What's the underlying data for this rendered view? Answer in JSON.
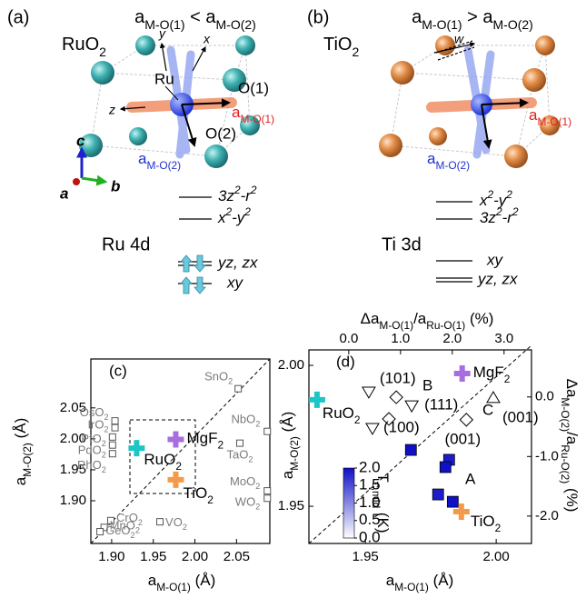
{
  "panels": [
    {
      "label": "(a)",
      "title": [
        "a",
        "M-O(1)",
        " < a",
        "M-O(2)"
      ],
      "compound": [
        "RuO",
        "2"
      ],
      "atom": "Ru",
      "site1": "O(1)",
      "site2": "O(2)",
      "axis_x": "x",
      "axis_y": "y",
      "axis_z": "z",
      "bond1": [
        "a",
        "M-O(1)"
      ],
      "bond2": [
        "a",
        "M-O(2)"
      ],
      "crystal_axes": [
        "c",
        "a",
        "b"
      ],
      "levels": [
        [
          "3z",
          "2",
          "-r",
          "2"
        ],
        [
          "x",
          "2",
          "-y",
          "2"
        ],
        "yz, zx",
        "xy"
      ],
      "shell": "Ru 4d"
    },
    {
      "label": "(b)",
      "title": [
        "a",
        "M-O(1)",
        " > a",
        "M-O(2)"
      ],
      "compound": [
        "TiO",
        "2"
      ],
      "wobble": "w",
      "bond1": [
        "a",
        "M-O(1)"
      ],
      "bond2": [
        "a",
        "M-O(2)"
      ],
      "levels": [
        [
          "x",
          "2",
          "-y",
          "2"
        ],
        [
          "3z",
          "2",
          "-r",
          "2"
        ],
        "xy",
        "yz, zx"
      ],
      "shell": "Ti 3d"
    }
  ],
  "chart_data": [
    {
      "type": "scatter",
      "label": "(c)",
      "xlabel": [
        "a",
        "M-O(1)",
        " (Å)"
      ],
      "ylabel": [
        "a",
        "M-O(2)",
        " (Å)"
      ],
      "xlim": [
        1.875,
        2.09
      ],
      "ylim": [
        1.831,
        2.129
      ],
      "xticks": [
        {
          "value": 1.9,
          "label": "1.90"
        },
        1.95,
        {
          "value": 2.0,
          "label": "2.00"
        },
        2.05
      ],
      "yticks": [
        {
          "value": 1.9,
          "label": "1.90"
        },
        1.95,
        {
          "value": 2.0,
          "label": "2.00"
        },
        2.05
      ],
      "points": [
        {
          "label": [
            "SnO",
            "2"
          ],
          "x": 2.052,
          "y": 2.081
        },
        {
          "label": [
            "OsO",
            "2"
          ],
          "x": 1.904,
          "y": 2.029
        },
        {
          "label": [
            "IrO",
            "2"
          ],
          "x": 1.904,
          "y": 2.018
        },
        {
          "label": [
            "PtO",
            "2"
          ],
          "x": 1.901,
          "y": 2.003
        },
        {
          "label": [
            "PdO",
            "2"
          ],
          "x": 1.901,
          "y": 1.99
        },
        {
          "label": [
            "RhO",
            "2"
          ],
          "x": 1.901,
          "y": 1.976
        },
        {
          "label": [
            "NbO",
            "2"
          ],
          "x": 2.087,
          "y": 2.012
        },
        {
          "label": [
            "TaO",
            "2"
          ],
          "x": 2.054,
          "y": 1.993
        },
        {
          "label": [
            "MoO",
            "2"
          ],
          "x": 2.087,
          "y": 1.916
        },
        {
          "label": [
            "WO",
            "2"
          ],
          "x": 2.087,
          "y": 1.904
        },
        {
          "label": [
            "CrO",
            "2"
          ],
          "x": 1.899,
          "y": 1.868
        },
        {
          "label": [
            "MnO",
            "2"
          ],
          "x": 1.891,
          "y": 1.857
        },
        {
          "label": [
            "GeO",
            "2"
          ],
          "x": 1.886,
          "y": 1.85
        },
        {
          "label": [
            "VO",
            "2"
          ],
          "x": 1.958,
          "y": 1.866
        }
      ],
      "series": [
        {
          "name": [
            "RuO",
            "2"
          ],
          "color": "#1cc6c6",
          "x": 1.93,
          "y": 1.985
        },
        {
          "name": [
            "MgF",
            "2"
          ],
          "color": "#a86ee0",
          "x": 1.977,
          "y": 1.999
        },
        {
          "name": [
            "TiO",
            "2"
          ],
          "color": "#f59a4a",
          "x": 1.977,
          "y": 1.934
        }
      ]
    },
    {
      "type": "scatter",
      "label": "(d)",
      "xlabel": [
        "a",
        "M-O(1)",
        " (Å)"
      ],
      "ylabel": [
        "a",
        "M-O(2)",
        " (Å)"
      ],
      "x2label": [
        "Δa",
        "M-O(1)",
        "/a",
        "Ru-O(1)",
        " (%)"
      ],
      "y2label": [
        "Δa",
        "M-O(2)",
        "/a",
        "Ru-O(2)",
        " (%)"
      ],
      "xlim": [
        1.9284,
        2.0135
      ],
      "ylim": [
        1.9368,
        2.0055
      ],
      "x2lim": [
        -0.77,
        3.53
      ],
      "y2lim": [
        -2.46,
        0.79
      ],
      "xticks": [
        1.95,
        {
          "value": 2.0,
          "label": "2.00"
        }
      ],
      "yticks": [
        1.95,
        {
          "value": 2.0,
          "label": "2.00"
        }
      ],
      "x2ticks": [
        {
          "value": 0,
          "label": "0.0"
        },
        {
          "value": 1,
          "label": "1.0"
        },
        {
          "value": 2,
          "label": "2.0"
        },
        {
          "value": 3,
          "label": "3.0"
        }
      ],
      "y2ticks": [
        {
          "value": 0,
          "label": "0.0"
        },
        {
          "value": -1,
          "label": "-1.0"
        },
        {
          "value": -2,
          "label": "-2.0"
        }
      ],
      "series": [
        {
          "name": [
            "RuO",
            "2"
          ],
          "color": "#1cc6c6",
          "x": 1.9315,
          "y": 1.9878
        },
        {
          "name": [
            "MgF",
            "2"
          ],
          "color": "#a86ee0",
          "x": 1.987,
          "y": 1.9971
        },
        {
          "name": [
            "TiO",
            "2"
          ],
          "color": "#f59a4a",
          "x": 1.9867,
          "y": 1.9481
        }
      ],
      "squares": [
        {
          "x": 1.9674,
          "y": 1.97,
          "t": 2.0
        },
        {
          "x": 1.982,
          "y": 1.9665,
          "t": 1.9
        },
        {
          "x": 1.9806,
          "y": 1.9639,
          "t": 2.0
        },
        {
          "x": 1.9778,
          "y": 1.9542,
          "t": 1.9
        },
        {
          "x": 1.9834,
          "y": 1.9516,
          "t": 2.0
        }
      ],
      "open": [
        {
          "shape": "triangle-down",
          "x": 1.9513,
          "y": 1.9907,
          "label": "(101)"
        },
        {
          "shape": "diamond",
          "x": 1.9618,
          "y": 1.9887
        },
        {
          "shape": "triangle-down",
          "x": 1.9677,
          "y": 1.9858,
          "label": "(111)"
        },
        {
          "shape": "diamond",
          "x": 1.959,
          "y": 1.981
        },
        {
          "shape": "triangle-down",
          "x": 1.9527,
          "y": 1.9778,
          "label": "(100)"
        },
        {
          "shape": "diamond",
          "x": 1.9886,
          "y": 1.9807,
          "label": "(001)"
        },
        {
          "shape": "triangle-up",
          "x": 1.9989,
          "y": 1.9884,
          "label": "(001)"
        }
      ],
      "annotations": [
        "A",
        "B",
        "C"
      ],
      "colorbar": {
        "label": [
          "T",
          "c,mid",
          " (K)"
        ],
        "clim": [
          0,
          2
        ],
        "colors": [
          "#ffffff",
          "#1010c8"
        ],
        "ticks": [
          {
            "value": 0,
            "label": "0.0"
          },
          {
            "value": 0.5,
            "label": "0.5"
          },
          {
            "value": 1,
            "label": "1.0"
          },
          {
            "value": 1.5,
            "label": "1.5"
          },
          {
            "value": 2,
            "label": "2.0"
          }
        ]
      }
    }
  ]
}
